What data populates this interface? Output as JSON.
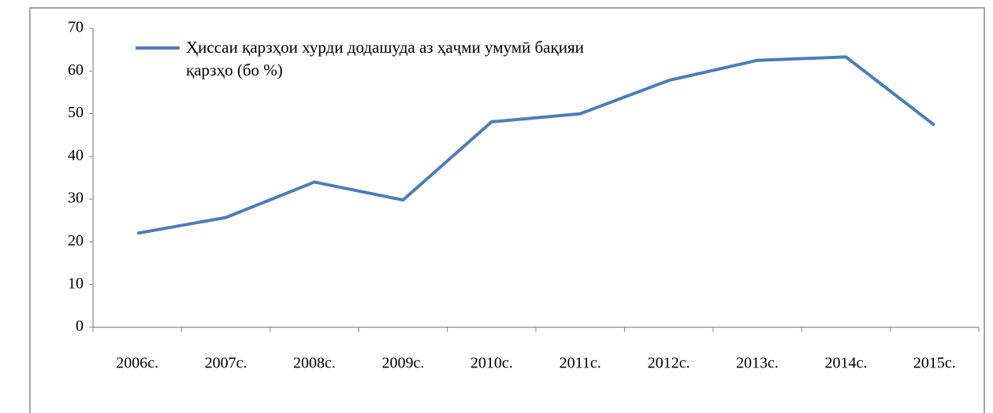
{
  "chart_data": {
    "type": "line",
    "categories": [
      "2006с.",
      "2007с.",
      "2008с.",
      "2009с.",
      "2010с.",
      "2011с.",
      "2012с.",
      "2013с.",
      "2014с.",
      "2015с."
    ],
    "series": [
      {
        "name": "Ҳиссаи қарзҳои хурди додашуда аз ҳаҷми умумӣ бақияи қарзҳо (бо %)",
        "color": "#4a7ebb",
        "values": [
          22,
          25.7,
          34,
          29.8,
          48.1,
          50,
          57.8,
          62.5,
          63.3,
          47.3
        ]
      }
    ],
    "ylim": [
      0,
      70
    ],
    "yticks": [
      0,
      10,
      20,
      30,
      40,
      50,
      60,
      70
    ],
    "grid": false,
    "legend": "top-left"
  }
}
